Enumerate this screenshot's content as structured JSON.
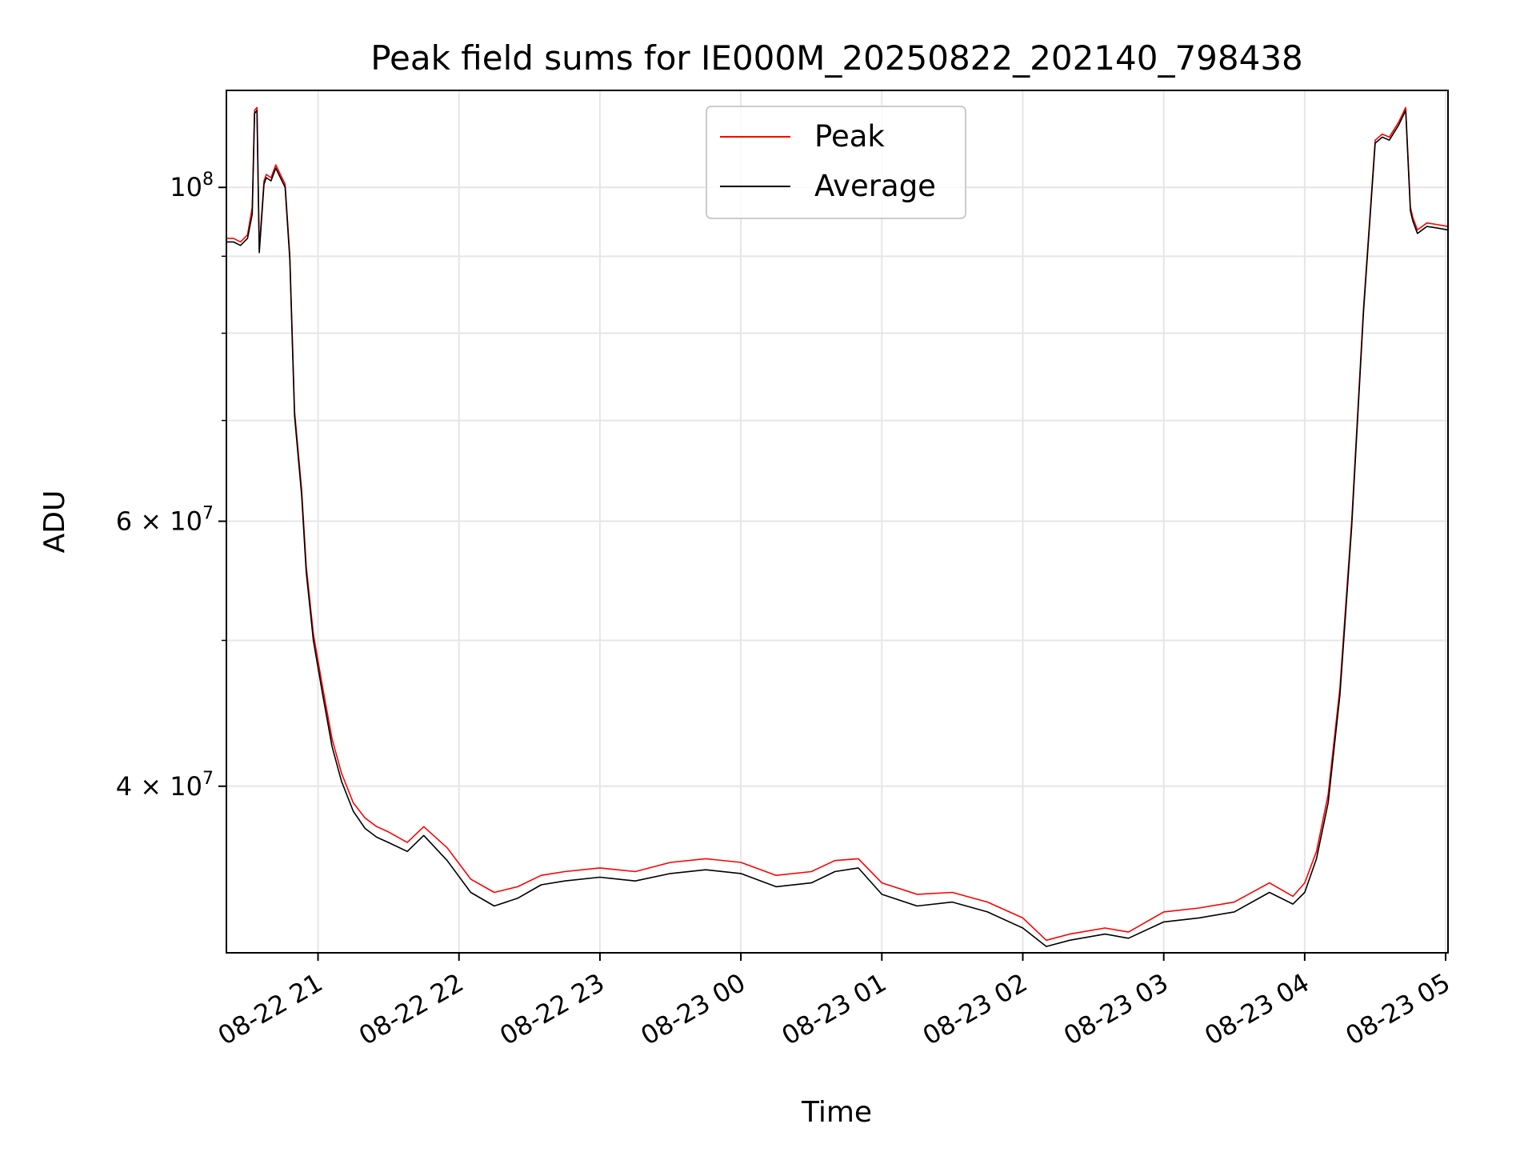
{
  "chart_data": {
    "type": "line",
    "title": "Peak field sums for IE000M_20250822_202140_798438",
    "xlabel": "Time",
    "ylabel": "ADU",
    "y_scale": "log",
    "ylim": [
      31000000,
      116000000
    ],
    "xlim": [
      "2025-08-22 20:21",
      "2025-08-23 05:01"
    ],
    "grid": true,
    "legend_position": "upper center",
    "x_ticks": [
      "08-22 21",
      "08-22 22",
      "08-22 23",
      "08-23 00",
      "08-23 01",
      "08-23 02",
      "08-23 03",
      "08-23 04",
      "08-23 05"
    ],
    "y_ticks": [
      {
        "value": 40000000,
        "label": "4 × 10",
        "exp": "7"
      },
      {
        "value": 60000000,
        "label": "6 × 10",
        "exp": "7"
      },
      {
        "value": 100000000,
        "label": "10",
        "exp": "8"
      }
    ],
    "y_minor_ticks": [
      50000000,
      70000000,
      80000000,
      90000000
    ],
    "x": [
      "2025-08-22 20:21",
      "2025-08-22 20:24",
      "2025-08-22 20:27",
      "2025-08-22 20:30",
      "2025-08-22 20:32",
      "2025-08-22 20:33",
      "2025-08-22 20:34",
      "2025-08-22 20:35",
      "2025-08-22 20:37",
      "2025-08-22 20:38",
      "2025-08-22 20:40",
      "2025-08-22 20:42",
      "2025-08-22 20:44",
      "2025-08-22 20:46",
      "2025-08-22 20:48",
      "2025-08-22 20:50",
      "2025-08-22 20:53",
      "2025-08-22 20:55",
      "2025-08-22 20:58",
      "2025-08-22 21:02",
      "2025-08-22 21:06",
      "2025-08-22 21:10",
      "2025-08-22 21:15",
      "2025-08-22 21:20",
      "2025-08-22 21:25",
      "2025-08-22 21:30",
      "2025-08-22 21:38",
      "2025-08-22 21:45",
      "2025-08-22 21:55",
      "2025-08-22 22:05",
      "2025-08-22 22:15",
      "2025-08-22 22:25",
      "2025-08-22 22:35",
      "2025-08-22 22:45",
      "2025-08-22 23:00",
      "2025-08-22 23:15",
      "2025-08-22 23:30",
      "2025-08-22 23:45",
      "2025-08-23 00:00",
      "2025-08-23 00:15",
      "2025-08-23 00:30",
      "2025-08-23 00:40",
      "2025-08-23 00:50",
      "2025-08-23 01:00",
      "2025-08-23 01:15",
      "2025-08-23 01:30",
      "2025-08-23 01:45",
      "2025-08-23 02:00",
      "2025-08-23 02:10",
      "2025-08-23 02:20",
      "2025-08-23 02:35",
      "2025-08-23 02:45",
      "2025-08-23 03:00",
      "2025-08-23 03:15",
      "2025-08-23 03:30",
      "2025-08-23 03:45",
      "2025-08-23 03:55",
      "2025-08-23 04:00",
      "2025-08-23 04:05",
      "2025-08-23 04:10",
      "2025-08-23 04:15",
      "2025-08-23 04:20",
      "2025-08-23 04:25",
      "2025-08-23 04:30",
      "2025-08-23 04:33",
      "2025-08-23 04:36",
      "2025-08-23 04:40",
      "2025-08-23 04:43",
      "2025-08-23 04:45",
      "2025-08-23 04:46",
      "2025-08-23 04:48",
      "2025-08-23 04:52",
      "2025-08-23 04:56",
      "2025-08-23 05:01"
    ],
    "series": [
      {
        "name": "Peak",
        "color": "#ff0000",
        "values": [
          92500000,
          92500000,
          92000000,
          93000000,
          97000000,
          112500000,
          113000000,
          91000000,
          101000000,
          102000000,
          101500000,
          103500000,
          102000000,
          100500000,
          90000000,
          71000000,
          63000000,
          56000000,
          50500000,
          46500000,
          43000000,
          40800000,
          39000000,
          38100000,
          37600000,
          37300000,
          36700000,
          37600000,
          36400000,
          34700000,
          34000000,
          34300000,
          34900000,
          35100000,
          35300000,
          35100000,
          35600000,
          35800000,
          35600000,
          34900000,
          35100000,
          35700000,
          35800000,
          34500000,
          33900000,
          34000000,
          33500000,
          32700000,
          31600000,
          31900000,
          32200000,
          32000000,
          33000000,
          33200000,
          33500000,
          34500000,
          33800000,
          34500000,
          36200000,
          39500000,
          46500000,
          60000000,
          83000000,
          107500000,
          108500000,
          108000000,
          110500000,
          113000000,
          97000000,
          95500000,
          93700000,
          94700000,
          94500000,
          94200000
        ]
      },
      {
        "name": "Average",
        "color": "#000000",
        "values": [
          92000000,
          92000000,
          91500000,
          92500000,
          96000000,
          112000000,
          112500000,
          90500000,
          100500000,
          101500000,
          101000000,
          103000000,
          101500000,
          100000000,
          89500000,
          70500000,
          62500000,
          55500000,
          50000000,
          46000000,
          42500000,
          40300000,
          38500000,
          37500000,
          37000000,
          36700000,
          36200000,
          37100000,
          35700000,
          34000000,
          33300000,
          33700000,
          34400000,
          34600000,
          34800000,
          34600000,
          35000000,
          35200000,
          35000000,
          34300000,
          34500000,
          35100000,
          35300000,
          33900000,
          33300000,
          33500000,
          33000000,
          32200000,
          31300000,
          31600000,
          31900000,
          31700000,
          32500000,
          32700000,
          33000000,
          34000000,
          33400000,
          34000000,
          35800000,
          39000000,
          46000000,
          59500000,
          82500000,
          107000000,
          108000000,
          107500000,
          110000000,
          112500000,
          96500000,
          95000000,
          93200000,
          94200000,
          94000000,
          93700000
        ]
      }
    ]
  }
}
